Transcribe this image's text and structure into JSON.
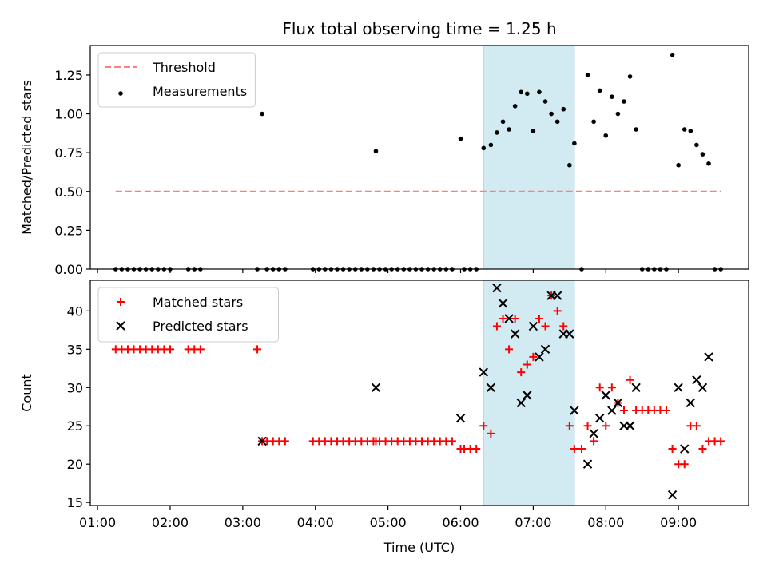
{
  "title": "Flux total observing time = 1.25 h",
  "xlabel": "Time (UTC)",
  "x_ticks": [
    "01:00",
    "02:00",
    "03:00",
    "04:00",
    "05:00",
    "06:00",
    "07:00",
    "08:00",
    "09:00"
  ],
  "colors": {
    "threshold": "#ff7f7f",
    "measurement": "#000000",
    "matched": "#ff0000",
    "predicted": "#000000",
    "span": "#add8e6"
  },
  "chart_data": [
    {
      "type": "scatter",
      "panel": "top",
      "ylabel": "Matched/Predicted stars",
      "xlim": [
        "00:54",
        "09:58"
      ],
      "ylim": [
        0,
        1.44
      ],
      "y_ticks": [
        "0.00",
        "0.25",
        "0.50",
        "0.75",
        "1.00",
        "1.25"
      ],
      "x_tick_labels_shown": false,
      "highlight_span": [
        "06:19",
        "07:34"
      ],
      "legend_position": "top-left",
      "series": [
        {
          "name": "Threshold",
          "kind": "dashed-line",
          "x": [
            "01:15",
            "09:35"
          ],
          "y": [
            0.5,
            0.5
          ]
        },
        {
          "name": "Measurements",
          "kind": "dot",
          "points": [
            [
              "01:15",
              0
            ],
            [
              "01:20",
              0
            ],
            [
              "01:25",
              0
            ],
            [
              "01:30",
              0
            ],
            [
              "01:35",
              0
            ],
            [
              "01:40",
              0
            ],
            [
              "01:45",
              0
            ],
            [
              "01:50",
              0
            ],
            [
              "01:55",
              0
            ],
            [
              "02:00",
              0
            ],
            [
              "02:15",
              0
            ],
            [
              "02:20",
              0
            ],
            [
              "02:25",
              0
            ],
            [
              "03:12",
              0
            ],
            [
              "03:16",
              1.0
            ],
            [
              "03:20",
              0
            ],
            [
              "03:25",
              0
            ],
            [
              "03:30",
              0
            ],
            [
              "03:35",
              0
            ],
            [
              "03:58",
              0
            ],
            [
              "04:03",
              0
            ],
            [
              "04:08",
              0
            ],
            [
              "04:13",
              0
            ],
            [
              "04:18",
              0
            ],
            [
              "04:23",
              0
            ],
            [
              "04:28",
              0
            ],
            [
              "04:33",
              0
            ],
            [
              "04:38",
              0
            ],
            [
              "04:43",
              0
            ],
            [
              "04:48",
              0
            ],
            [
              "04:50",
              0.76
            ],
            [
              "04:53",
              0
            ],
            [
              "04:58",
              0
            ],
            [
              "05:03",
              0
            ],
            [
              "05:08",
              0
            ],
            [
              "05:13",
              0
            ],
            [
              "05:18",
              0
            ],
            [
              "05:23",
              0
            ],
            [
              "05:28",
              0
            ],
            [
              "05:33",
              0
            ],
            [
              "05:38",
              0
            ],
            [
              "05:43",
              0
            ],
            [
              "05:48",
              0
            ],
            [
              "05:53",
              0
            ],
            [
              "06:00",
              0.84
            ],
            [
              "06:03",
              0
            ],
            [
              "06:08",
              0
            ],
            [
              "06:13",
              0
            ],
            [
              "06:19",
              0.78
            ],
            [
              "06:25",
              0.8
            ],
            [
              "06:30",
              0.88
            ],
            [
              "06:35",
              0.95
            ],
            [
              "06:40",
              0.9
            ],
            [
              "06:45",
              1.05
            ],
            [
              "06:50",
              1.14
            ],
            [
              "06:55",
              1.13
            ],
            [
              "07:00",
              0.89
            ],
            [
              "07:05",
              1.14
            ],
            [
              "07:10",
              1.08
            ],
            [
              "07:15",
              1.0
            ],
            [
              "07:20",
              0.95
            ],
            [
              "07:25",
              1.03
            ],
            [
              "07:30",
              0.67
            ],
            [
              "07:34",
              0.81
            ],
            [
              "07:40",
              0
            ],
            [
              "07:45",
              1.25
            ],
            [
              "07:50",
              0.95
            ],
            [
              "07:55",
              1.15
            ],
            [
              "08:00",
              0.86
            ],
            [
              "08:05",
              1.11
            ],
            [
              "08:10",
              1.0
            ],
            [
              "08:15",
              1.08
            ],
            [
              "08:20",
              1.24
            ],
            [
              "08:25",
              0.9
            ],
            [
              "08:30",
              0
            ],
            [
              "08:35",
              0
            ],
            [
              "08:40",
              0
            ],
            [
              "08:45",
              0
            ],
            [
              "08:50",
              0
            ],
            [
              "08:55",
              1.38
            ],
            [
              "09:00",
              0.67
            ],
            [
              "09:05",
              0.9
            ],
            [
              "09:10",
              0.89
            ],
            [
              "09:15",
              0.8
            ],
            [
              "09:20",
              0.74
            ],
            [
              "09:25",
              0.68
            ],
            [
              "09:30",
              0
            ],
            [
              "09:35",
              0
            ]
          ]
        }
      ]
    },
    {
      "type": "scatter",
      "panel": "bottom",
      "ylabel": "Count",
      "xlim": [
        "00:54",
        "09:58"
      ],
      "ylim": [
        14.6,
        44
      ],
      "y_ticks": [
        "15",
        "20",
        "25",
        "30",
        "35",
        "40"
      ],
      "highlight_span": [
        "06:19",
        "07:34"
      ],
      "legend_position": "top-left",
      "series": [
        {
          "name": "Matched stars",
          "kind": "plus",
          "points": [
            [
              "01:15",
              35
            ],
            [
              "01:20",
              35
            ],
            [
              "01:25",
              35
            ],
            [
              "01:30",
              35
            ],
            [
              "01:35",
              35
            ],
            [
              "01:40",
              35
            ],
            [
              "01:45",
              35
            ],
            [
              "01:50",
              35
            ],
            [
              "01:55",
              35
            ],
            [
              "02:00",
              35
            ],
            [
              "02:15",
              35
            ],
            [
              "02:20",
              35
            ],
            [
              "02:25",
              35
            ],
            [
              "03:12",
              35
            ],
            [
              "03:16",
              23
            ],
            [
              "03:20",
              23
            ],
            [
              "03:25",
              23
            ],
            [
              "03:30",
              23
            ],
            [
              "03:35",
              23
            ],
            [
              "03:58",
              23
            ],
            [
              "04:03",
              23
            ],
            [
              "04:08",
              23
            ],
            [
              "04:13",
              23
            ],
            [
              "04:18",
              23
            ],
            [
              "04:23",
              23
            ],
            [
              "04:28",
              23
            ],
            [
              "04:33",
              23
            ],
            [
              "04:38",
              23
            ],
            [
              "04:43",
              23
            ],
            [
              "04:48",
              23
            ],
            [
              "04:50",
              23
            ],
            [
              "04:53",
              23
            ],
            [
              "04:58",
              23
            ],
            [
              "05:03",
              23
            ],
            [
              "05:08",
              23
            ],
            [
              "05:13",
              23
            ],
            [
              "05:18",
              23
            ],
            [
              "05:23",
              23
            ],
            [
              "05:28",
              23
            ],
            [
              "05:33",
              23
            ],
            [
              "05:38",
              23
            ],
            [
              "05:43",
              23
            ],
            [
              "05:48",
              23
            ],
            [
              "05:53",
              23
            ],
            [
              "06:00",
              22
            ],
            [
              "06:03",
              22
            ],
            [
              "06:08",
              22
            ],
            [
              "06:13",
              22
            ],
            [
              "06:19",
              25
            ],
            [
              "06:25",
              24
            ],
            [
              "06:30",
              38
            ],
            [
              "06:35",
              39
            ],
            [
              "06:40",
              35
            ],
            [
              "06:45",
              39
            ],
            [
              "06:50",
              32
            ],
            [
              "06:55",
              33
            ],
            [
              "07:00",
              34
            ],
            [
              "07:05",
              39
            ],
            [
              "07:10",
              38
            ],
            [
              "07:15",
              42
            ],
            [
              "07:20",
              40
            ],
            [
              "07:25",
              38
            ],
            [
              "07:30",
              25
            ],
            [
              "07:34",
              22
            ],
            [
              "07:40",
              22
            ],
            [
              "07:45",
              25
            ],
            [
              "07:50",
              23
            ],
            [
              "07:55",
              30
            ],
            [
              "08:00",
              25
            ],
            [
              "08:05",
              30
            ],
            [
              "08:10",
              28
            ],
            [
              "08:15",
              27
            ],
            [
              "08:20",
              31
            ],
            [
              "08:25",
              27
            ],
            [
              "08:30",
              27
            ],
            [
              "08:35",
              27
            ],
            [
              "08:40",
              27
            ],
            [
              "08:45",
              27
            ],
            [
              "08:50",
              27
            ],
            [
              "08:55",
              22
            ],
            [
              "09:00",
              20
            ],
            [
              "09:05",
              20
            ],
            [
              "09:10",
              25
            ],
            [
              "09:15",
              25
            ],
            [
              "09:20",
              22
            ],
            [
              "09:25",
              23
            ],
            [
              "09:30",
              23
            ],
            [
              "09:35",
              23
            ]
          ]
        },
        {
          "name": "Predicted stars",
          "kind": "x",
          "points": [
            [
              "03:16",
              23
            ],
            [
              "04:50",
              30
            ],
            [
              "06:00",
              26
            ],
            [
              "06:19",
              32
            ],
            [
              "06:25",
              30
            ],
            [
              "06:30",
              43
            ],
            [
              "06:35",
              41
            ],
            [
              "06:40",
              39
            ],
            [
              "06:45",
              37
            ],
            [
              "06:50",
              28
            ],
            [
              "06:55",
              29
            ],
            [
              "07:00",
              38
            ],
            [
              "07:05",
              34
            ],
            [
              "07:10",
              35
            ],
            [
              "07:15",
              42
            ],
            [
              "07:20",
              42
            ],
            [
              "07:25",
              37
            ],
            [
              "07:30",
              37
            ],
            [
              "07:34",
              27
            ],
            [
              "07:45",
              20
            ],
            [
              "07:50",
              24
            ],
            [
              "07:55",
              26
            ],
            [
              "08:00",
              29
            ],
            [
              "08:05",
              27
            ],
            [
              "08:10",
              28
            ],
            [
              "08:15",
              25
            ],
            [
              "08:20",
              25
            ],
            [
              "08:25",
              30
            ],
            [
              "08:55",
              16
            ],
            [
              "09:00",
              30
            ],
            [
              "09:05",
              22
            ],
            [
              "09:10",
              28
            ],
            [
              "09:15",
              31
            ],
            [
              "09:20",
              30
            ],
            [
              "09:25",
              34
            ]
          ]
        }
      ]
    }
  ]
}
